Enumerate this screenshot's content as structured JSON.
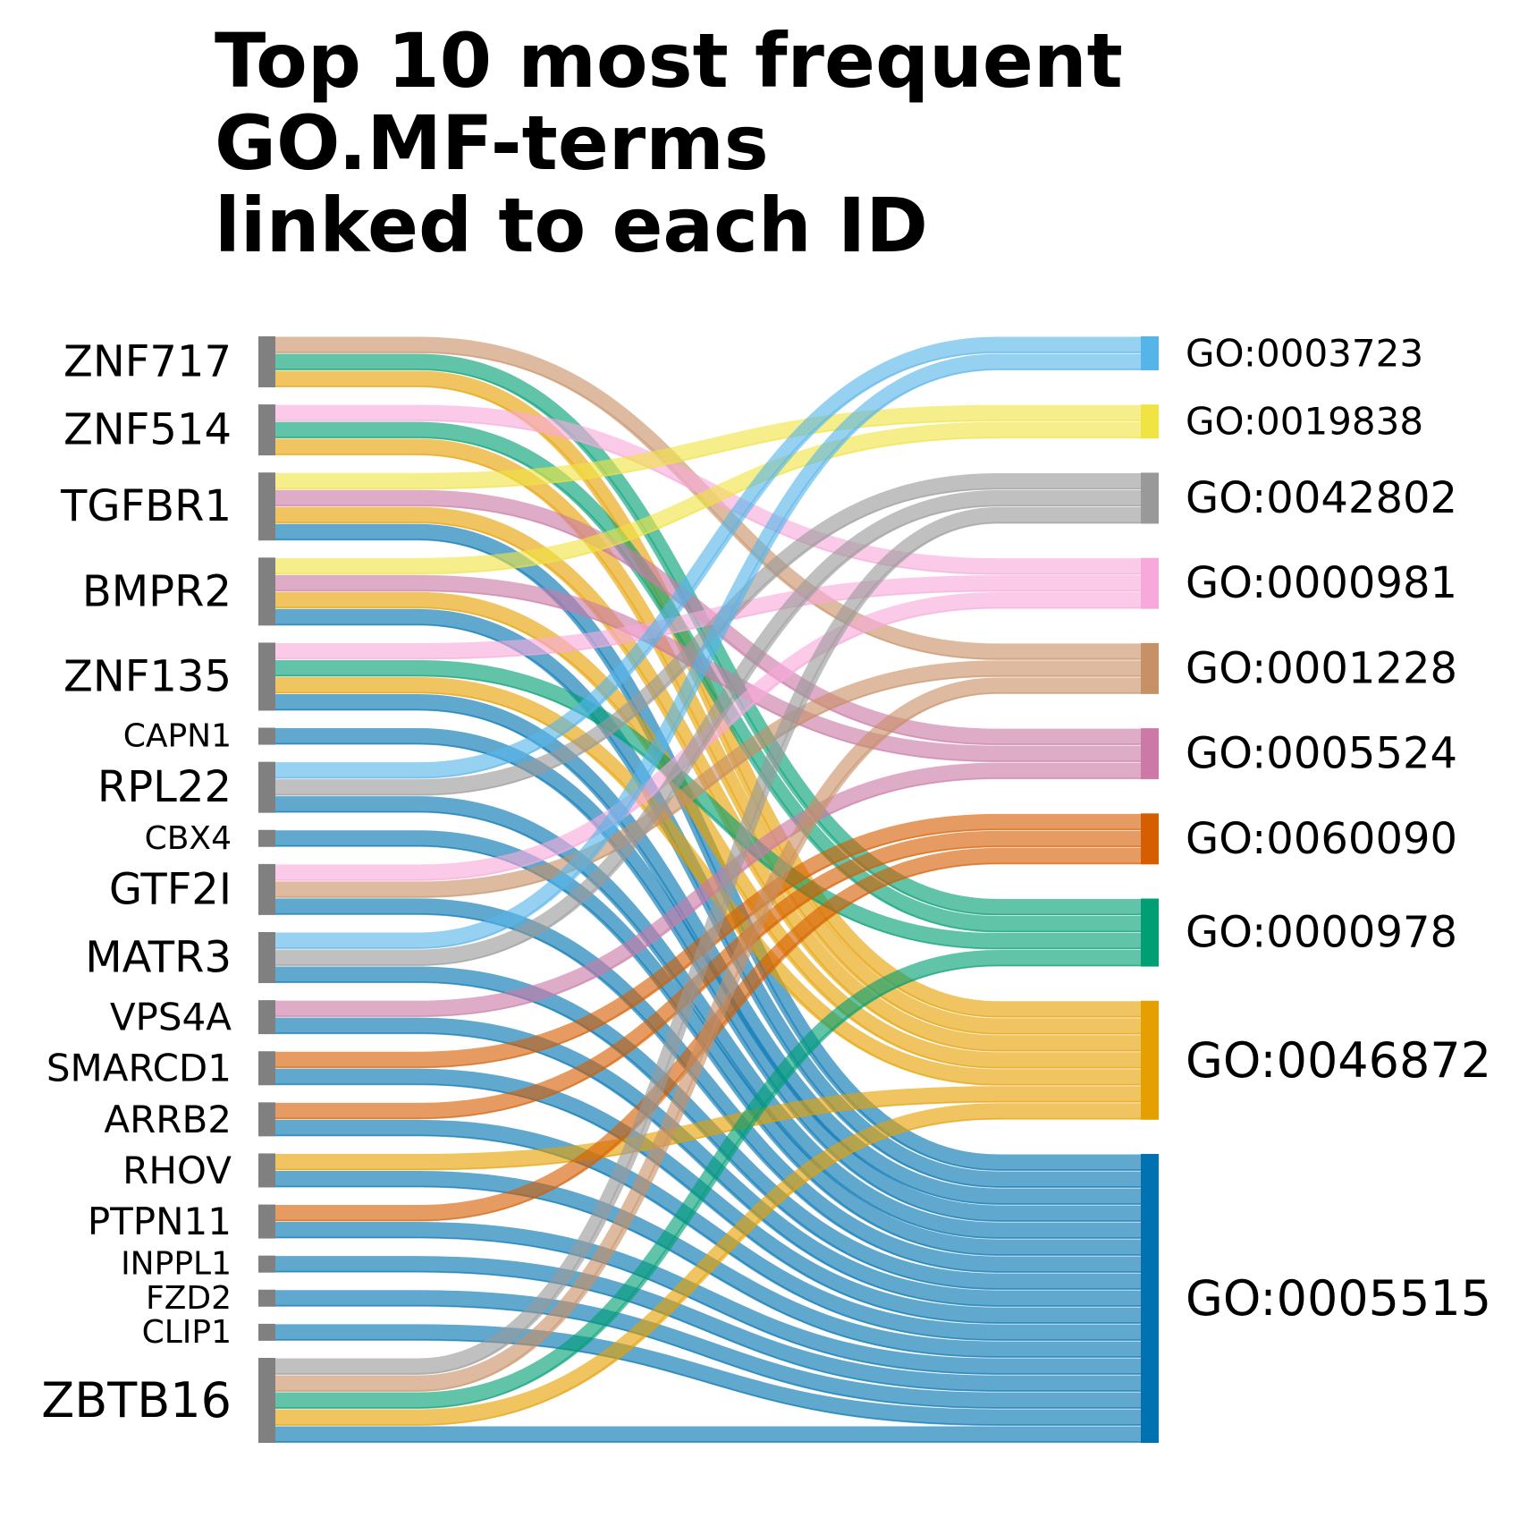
{
  "title": {
    "lines": [
      "Top 10 most frequent",
      "GO.MF-terms",
      "linked to each ID"
    ]
  },
  "colors": {
    "GO:0003723": "#56B4E9",
    "GO:0019838": "#F0E442",
    "GO:0042802": "#999999",
    "GO:0000981": "#F8A9DC",
    "GO:0001228": "#C89066",
    "GO:0005524": "#CC79A7",
    "GO:0060090": "#D55E00",
    "GO:0000978": "#009E73",
    "GO:0046872": "#E69F00",
    "GO:0005515": "#0072B2",
    "id_node": "#808080"
  },
  "chart_data": {
    "type": "sankey",
    "sources": [
      "ZNF717",
      "ZNF514",
      "TGFBR1",
      "BMPR2",
      "ZNF135",
      "CAPN1",
      "RPL22",
      "CBX4",
      "GTF2I",
      "MATR3",
      "VPS4A",
      "SMARCD1",
      "ARRB2",
      "RHOV",
      "PTPN11",
      "INPPL1",
      "FZD2",
      "CLIP1",
      "ZBTB16"
    ],
    "targets": [
      "GO:0003723",
      "GO:0019838",
      "GO:0042802",
      "GO:0000981",
      "GO:0001228",
      "GO:0005524",
      "GO:0060090",
      "GO:0000978",
      "GO:0046872",
      "GO:0005515"
    ],
    "links": [
      {
        "source": "ZNF717",
        "targets": [
          "GO:0001228",
          "GO:0000978",
          "GO:0046872"
        ]
      },
      {
        "source": "ZNF514",
        "targets": [
          "GO:0000981",
          "GO:0000978",
          "GO:0046872"
        ]
      },
      {
        "source": "TGFBR1",
        "targets": [
          "GO:0019838",
          "GO:0005524",
          "GO:0046872",
          "GO:0005515"
        ]
      },
      {
        "source": "BMPR2",
        "targets": [
          "GO:0019838",
          "GO:0005524",
          "GO:0046872",
          "GO:0005515"
        ]
      },
      {
        "source": "ZNF135",
        "targets": [
          "GO:0000981",
          "GO:0000978",
          "GO:0046872",
          "GO:0005515"
        ]
      },
      {
        "source": "CAPN1",
        "targets": [
          "GO:0005515"
        ]
      },
      {
        "source": "RPL22",
        "targets": [
          "GO:0003723",
          "GO:0042802",
          "GO:0005515"
        ]
      },
      {
        "source": "CBX4",
        "targets": [
          "GO:0005515"
        ]
      },
      {
        "source": "GTF2I",
        "targets": [
          "GO:0000981",
          "GO:0001228",
          "GO:0005515"
        ]
      },
      {
        "source": "MATR3",
        "targets": [
          "GO:0003723",
          "GO:0042802",
          "GO:0005515"
        ]
      },
      {
        "source": "VPS4A",
        "targets": [
          "GO:0005524",
          "GO:0005515"
        ]
      },
      {
        "source": "SMARCD1",
        "targets": [
          "GO:0060090",
          "GO:0005515"
        ]
      },
      {
        "source": "ARRB2",
        "targets": [
          "GO:0060090",
          "GO:0005515"
        ]
      },
      {
        "source": "RHOV",
        "targets": [
          "GO:0046872",
          "GO:0005515"
        ]
      },
      {
        "source": "PTPN11",
        "targets": [
          "GO:0060090",
          "GO:0005515"
        ]
      },
      {
        "source": "INPPL1",
        "targets": [
          "GO:0005515"
        ]
      },
      {
        "source": "FZD2",
        "targets": [
          "GO:0005515"
        ]
      },
      {
        "source": "CLIP1",
        "targets": [
          "GO:0005515"
        ]
      },
      {
        "source": "ZBTB16",
        "targets": [
          "GO:0042802",
          "GO:0001228",
          "GO:0000978",
          "GO:0046872",
          "GO:0005515"
        ]
      }
    ]
  }
}
